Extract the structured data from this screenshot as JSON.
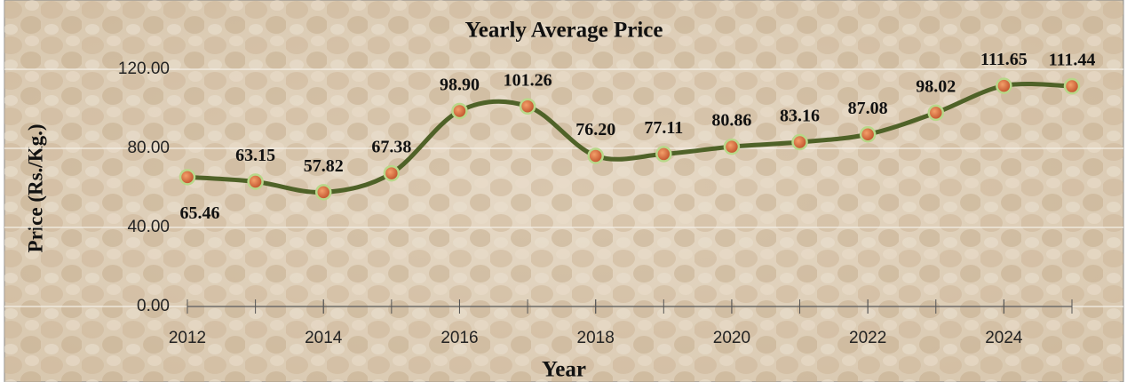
{
  "chart_data": {
    "type": "line",
    "title": "Yearly Average Price",
    "x_label": "Year",
    "y_label": "Price (Rs./Kg.)",
    "x": [
      2012,
      2013,
      2014,
      2015,
      2016,
      2017,
      2018,
      2019,
      2020,
      2021,
      2022,
      2023,
      2024,
      2025
    ],
    "series": [
      {
        "name": "Price",
        "color": "#4f6228",
        "values": [
          65.46,
          63.15,
          57.82,
          67.38,
          98.9,
          101.26,
          76.2,
          77.11,
          80.86,
          83.16,
          87.08,
          98.02,
          111.65,
          111.44
        ],
        "value_labels": [
          "65.46",
          "63.15",
          "57.82",
          "67.38",
          "98.90",
          "101.26",
          "76.20",
          "77.11",
          "80.86",
          "83.16",
          "87.08",
          "98.02",
          "111.65",
          "111.44"
        ]
      }
    ],
    "xlim": [
      2012,
      2025
    ],
    "xticks": [
      2012,
      2014,
      2016,
      2018,
      2020,
      2022,
      2024
    ],
    "ylim": [
      0,
      120
    ],
    "yticks": [
      {
        "value": 0,
        "label": "0.00"
      },
      {
        "value": 40,
        "label": "40.00"
      },
      {
        "value": 80,
        "label": "80.00"
      },
      {
        "value": 120,
        "label": "120.00"
      }
    ],
    "grid": true,
    "smooth": true
  }
}
